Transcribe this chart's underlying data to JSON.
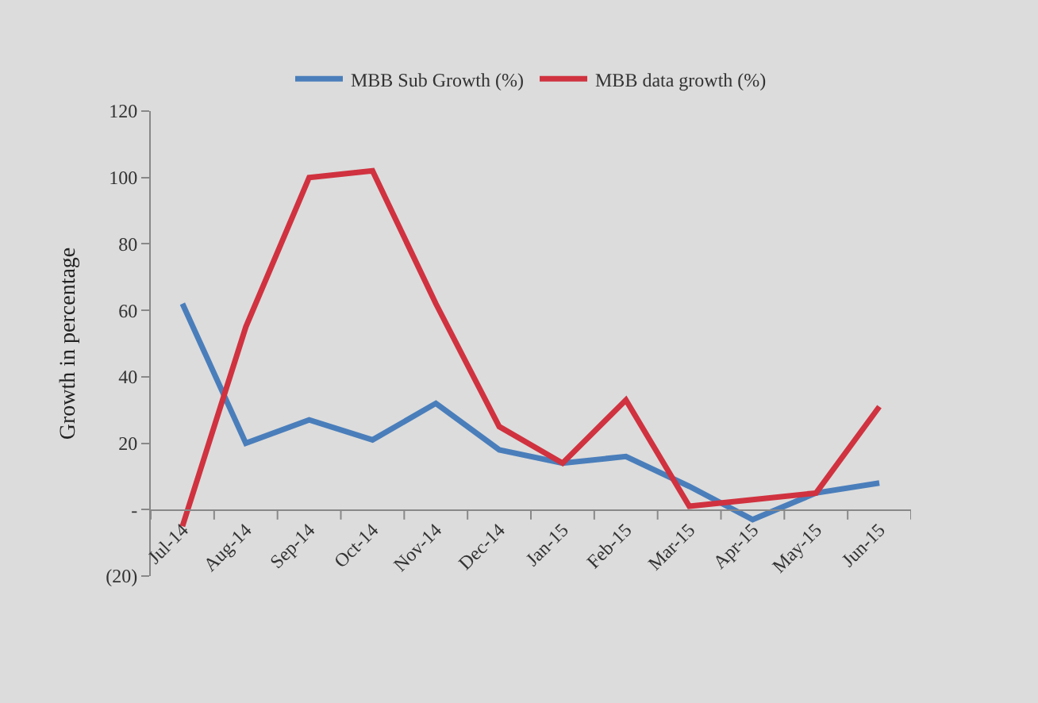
{
  "chart_data": {
    "type": "line",
    "ylabel": "Growth in percentage",
    "categories": [
      "Jul-14",
      "Aug-14",
      "Sep-14",
      "Oct-14",
      "Nov-14",
      "Dec-14",
      "Jan-15",
      "Feb-15",
      "Mar-15",
      "Apr-15",
      "May-15",
      "Jun-15"
    ],
    "series": [
      {
        "name": "MBB Sub Growth (%)",
        "color": "#4a7ebb",
        "values": [
          62,
          20,
          27,
          21,
          32,
          18,
          14,
          16,
          7,
          -3,
          5,
          8
        ]
      },
      {
        "name": "MBB data growth (%)",
        "color": "#d0323f",
        "values": [
          -5,
          55,
          100,
          102,
          62,
          25,
          14,
          33,
          1,
          3,
          5,
          31
        ]
      }
    ],
    "ylim": [
      -20,
      120
    ],
    "yticks": [
      {
        "value": -20,
        "label": "(20)"
      },
      {
        "value": 0,
        "label": "-"
      },
      20,
      40,
      60,
      80,
      100,
      120
    ],
    "grid": false,
    "legend": "top",
    "marker": "none",
    "line_style": "solid"
  }
}
